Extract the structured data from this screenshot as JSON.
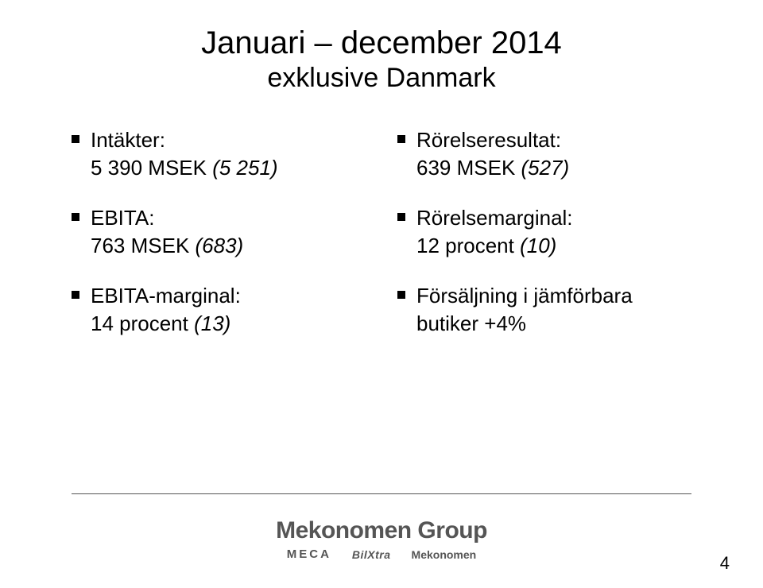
{
  "title": "Januari – december 2014",
  "subtitle": "exklusive Danmark",
  "left_column": [
    {
      "label": "Intäkter:",
      "value_main": "5 390 MSEK ",
      "value_comp": "(5 251)"
    },
    {
      "label": "EBITA:",
      "value_main": "763 MSEK ",
      "value_comp": "(683)"
    },
    {
      "label": "EBITA-marginal:",
      "value_main": "14 procent ",
      "value_comp": "(13)"
    }
  ],
  "right_column": [
    {
      "label": "Rörelseresultat:",
      "value_main": "639 MSEK ",
      "value_comp": "(527)"
    },
    {
      "label": "Rörelsemarginal:",
      "value_main": "12 procent ",
      "value_comp": "(10)"
    },
    {
      "label": "Försäljning i jämförbara butiker +4%",
      "value_main": "",
      "value_comp": ""
    }
  ],
  "footer": {
    "group": "Mekonomen Group",
    "brands": {
      "meca": "MECA",
      "bilxtra": "BilXtra",
      "mekonomen": "Mekonomen"
    }
  },
  "page_number": "4",
  "colors": {
    "text": "#000000",
    "footer_text": "#555555",
    "divider": "#555555",
    "background": "#ffffff"
  },
  "fonts": {
    "title_size_pt": 40,
    "subtitle_size_pt": 34,
    "body_size_pt": 26,
    "footer_main_size_pt": 30,
    "footer_sub_size_pt": 14,
    "page_number_size_pt": 22
  }
}
